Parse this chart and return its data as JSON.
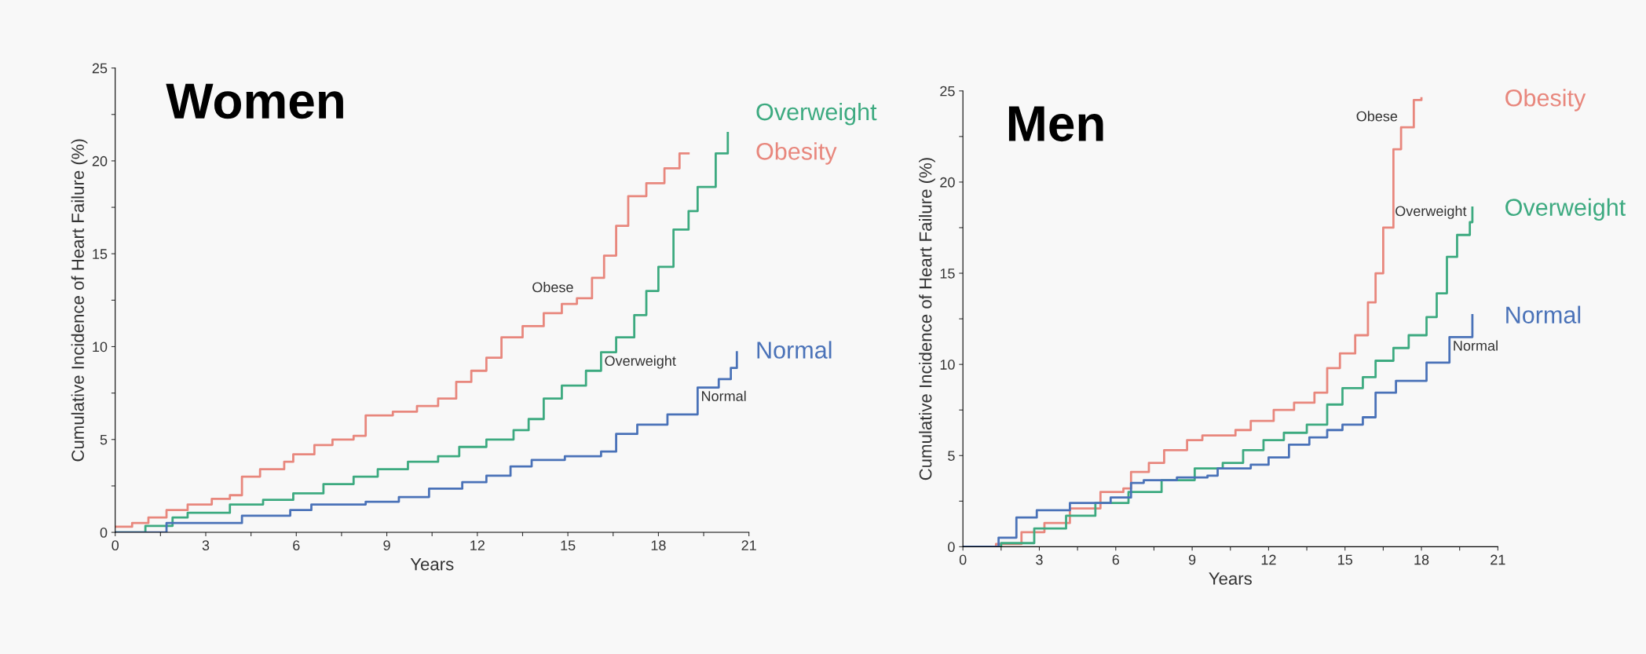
{
  "chart_data": [
    {
      "type": "step",
      "title": "Women",
      "xlabel": "Years",
      "ylabel": "Cumulative Incidence of Heart Failure (%)",
      "xlim": [
        0,
        21
      ],
      "ylim": [
        0,
        25
      ],
      "xticks": [
        0,
        {
          "value": 1.5,
          "label": null
        },
        3,
        {
          "value": 4.5,
          "label": null
        },
        6,
        {
          "value": 7.5,
          "label": null
        },
        9,
        {
          "value": 10.5,
          "label": null
        },
        12,
        {
          "value": 13.5,
          "label": null
        },
        15,
        {
          "value": 16.5,
          "label": null
        },
        18,
        {
          "value": 19.5,
          "label": null
        },
        21
      ],
      "yticks": [
        0,
        {
          "value": 2.5,
          "label": null
        },
        5,
        {
          "value": 7.5,
          "label": null
        },
        10,
        {
          "value": 12.5,
          "label": null
        },
        15,
        {
          "value": 17.5,
          "label": null
        },
        20,
        {
          "value": 22.5,
          "label": null
        },
        25
      ],
      "grid": false,
      "series": [
        {
          "name": "Obesity",
          "color": "#e8877d",
          "x": [
            0,
            0.56,
            1.1,
            1.7,
            2.4,
            3.2,
            3.8,
            4.2,
            4.8,
            5.6,
            5.9,
            6.6,
            7.2,
            7.9,
            8.3,
            9.2,
            10.0,
            10.7,
            11.3,
            11.8,
            12.3,
            12.8,
            13.5,
            14.2,
            14.8,
            15.3,
            15.8,
            16.2,
            16.6,
            17.0,
            17.6,
            18.2,
            18.7,
            19.0
          ],
          "values": [
            0.3,
            0.5,
            0.8,
            1.2,
            1.5,
            1.8,
            2.0,
            3.0,
            3.4,
            3.8,
            4.2,
            4.7,
            5.0,
            5.2,
            6.3,
            6.5,
            6.8,
            7.2,
            8.1,
            8.7,
            9.4,
            10.5,
            11.1,
            11.8,
            12.3,
            12.6,
            13.7,
            14.9,
            16.5,
            18.1,
            18.8,
            19.6,
            20.4,
            20.4
          ]
        },
        {
          "name": "Overweight",
          "color": "#3daa80",
          "x": [
            0,
            1.0,
            1.9,
            2.4,
            3.8,
            4.9,
            5.9,
            6.9,
            7.9,
            8.7,
            9.7,
            10.7,
            11.4,
            12.3,
            13.2,
            13.7,
            14.2,
            14.8,
            15.6,
            16.1,
            16.6,
            17.2,
            17.6,
            18.0,
            18.5,
            19.0,
            19.3,
            19.9,
            20.3
          ],
          "values": [
            0,
            0.35,
            0.8,
            1.05,
            1.5,
            1.75,
            2.1,
            2.6,
            3.0,
            3.4,
            3.8,
            4.1,
            4.6,
            5.0,
            5.5,
            6.1,
            7.2,
            7.9,
            8.7,
            9.7,
            10.5,
            11.7,
            13.0,
            14.3,
            16.3,
            17.3,
            18.6,
            20.4,
            21.5
          ]
        },
        {
          "name": "Normal",
          "color": "#4a72b8",
          "x": [
            0,
            1.7,
            3.7,
            4.2,
            5.8,
            6.5,
            8.3,
            9.4,
            10.4,
            11.5,
            12.3,
            13.1,
            13.8,
            14.9,
            16.1,
            16.6,
            17.3,
            18.3,
            19.3,
            20.0,
            20.4,
            20.6
          ],
          "values": [
            0,
            0.5,
            0.5,
            0.9,
            1.2,
            1.5,
            1.65,
            1.9,
            2.35,
            2.7,
            3.05,
            3.55,
            3.9,
            4.1,
            4.35,
            5.3,
            5.8,
            6.35,
            7.8,
            8.25,
            8.85,
            9.7
          ]
        }
      ],
      "annotations": [
        {
          "text": "Obese",
          "x": 15.3,
          "y": 12.6
        },
        {
          "text": "Overweight",
          "x": 16.1,
          "y": 9.7
        },
        {
          "text": "Normal",
          "x": 19.3,
          "y": 7.8
        }
      ]
    },
    {
      "type": "step",
      "title": "Men",
      "xlabel": "Years",
      "ylabel": "Cumulative Incidence of Heart Failure (%)",
      "xlim": [
        0,
        21
      ],
      "ylim": [
        0,
        25
      ],
      "xticks": [
        0,
        {
          "value": 1.5,
          "label": null
        },
        3,
        {
          "value": 4.5,
          "label": null
        },
        6,
        {
          "value": 7.5,
          "label": null
        },
        9,
        {
          "value": 10.5,
          "label": null
        },
        12,
        {
          "value": 13.5,
          "label": null
        },
        15,
        {
          "value": 16.5,
          "label": null
        },
        18,
        {
          "value": 19.5,
          "label": null
        },
        21
      ],
      "yticks": [
        0,
        {
          "value": 2.5,
          "label": null
        },
        5,
        {
          "value": 7.5,
          "label": null
        },
        10,
        {
          "value": 12.5,
          "label": null
        },
        15,
        {
          "value": 17.5,
          "label": null
        },
        20,
        {
          "value": 22.5,
          "label": null
        },
        25
      ],
      "grid": false,
      "series": [
        {
          "name": "Obesity",
          "color": "#e8877d",
          "x": [
            0,
            1.3,
            2.3,
            3.2,
            4.2,
            5.4,
            6.3,
            6.6,
            7.3,
            7.9,
            8.8,
            9.4,
            10.7,
            11.3,
            12.2,
            13.0,
            13.8,
            14.3,
            14.8,
            15.4,
            15.9,
            16.2,
            16.5,
            16.9,
            17.2,
            17.7,
            18.0
          ],
          "values": [
            0,
            0.15,
            0.8,
            1.3,
            2.1,
            3.0,
            3.2,
            4.1,
            4.6,
            5.3,
            5.85,
            6.1,
            6.4,
            6.9,
            7.5,
            7.9,
            8.45,
            9.8,
            10.6,
            11.6,
            13.4,
            15.0,
            17.5,
            21.8,
            23.0,
            24.5,
            24.6
          ]
        },
        {
          "name": "Overweight",
          "color": "#3daa80",
          "x": [
            0,
            1.5,
            2.8,
            4.05,
            5.2,
            6.5,
            7.8,
            9.1,
            10.2,
            11.0,
            11.8,
            12.6,
            13.5,
            14.3,
            14.9,
            15.7,
            16.2,
            16.9,
            17.5,
            18.2,
            18.6,
            19.0,
            19.4,
            19.9,
            20.0
          ],
          "values": [
            0,
            0.2,
            1.0,
            1.7,
            2.4,
            3.0,
            3.65,
            4.3,
            4.6,
            5.3,
            5.85,
            6.25,
            6.7,
            7.8,
            8.7,
            9.3,
            10.2,
            10.9,
            11.6,
            12.6,
            13.9,
            15.9,
            17.1,
            17.8,
            18.6
          ]
        },
        {
          "name": "Normal",
          "color": "#4a72b8",
          "x": [
            0,
            1.4,
            2.1,
            2.9,
            4.2,
            5.8,
            6.6,
            7.1,
            8.4,
            9.6,
            10.0,
            11.3,
            12.0,
            12.8,
            13.6,
            14.3,
            14.9,
            15.7,
            16.2,
            17.0,
            18.2,
            19.1,
            20.0
          ],
          "values": [
            0,
            0.5,
            1.6,
            2.0,
            2.4,
            2.7,
            3.5,
            3.65,
            3.8,
            3.9,
            4.3,
            4.5,
            4.9,
            5.6,
            6.0,
            6.4,
            6.7,
            7.1,
            8.45,
            9.1,
            10.1,
            11.5,
            12.7
          ]
        }
      ],
      "annotations": [
        {
          "text": "Obese",
          "x": 17.2,
          "y": 23.0
        },
        {
          "text": "Overweight",
          "x": 19.9,
          "y": 17.8
        },
        {
          "text": "Normal",
          "x": 19.1,
          "y": 11.5
        }
      ]
    }
  ]
}
